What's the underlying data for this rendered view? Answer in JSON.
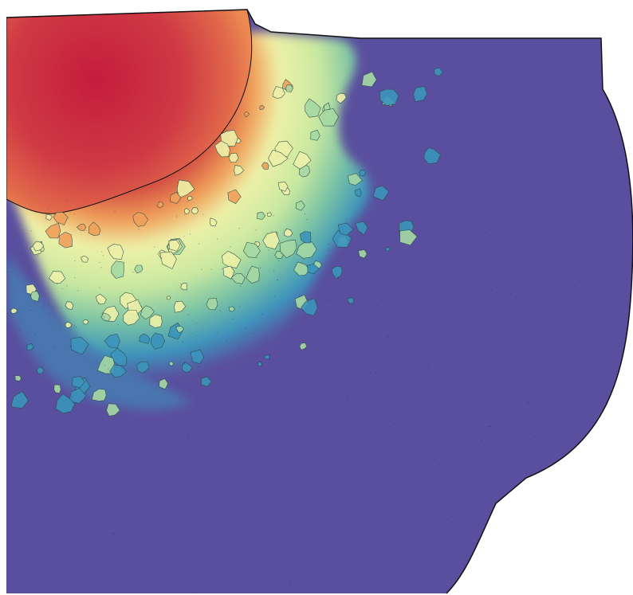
{
  "map": {
    "color_ramp": {
      "low": "#5a4f9e",
      "low_mid": "#3c94bc",
      "mid": "#a6d9a4",
      "mid_high": "#edf1a8",
      "high_mid": "#f0a05a",
      "high": "#c8203c"
    },
    "background": "#ffffff",
    "outline": "#111111"
  }
}
